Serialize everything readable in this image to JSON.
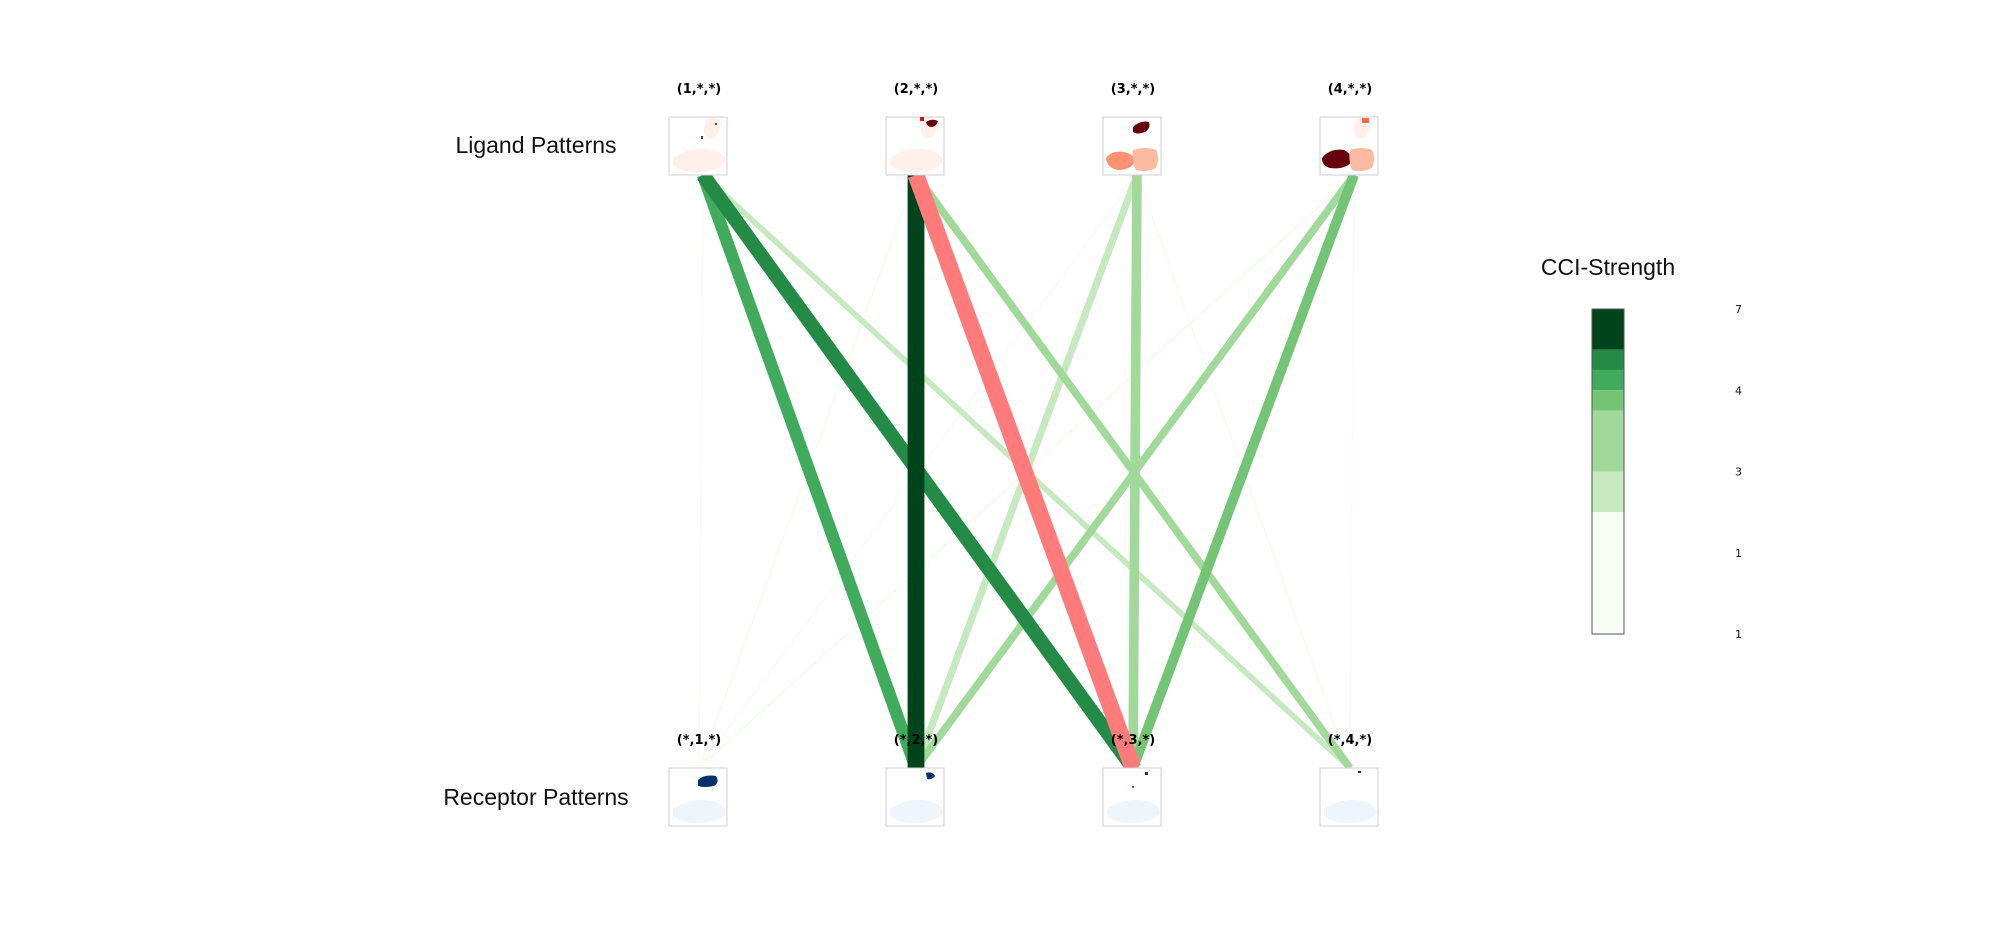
{
  "row_labels": {
    "ligand": "Ligand Patterns",
    "receptor": "Receptor Patterns"
  },
  "ligand_nodes": [
    {
      "label": "(1,*,*)",
      "map": "spot-map-red-1"
    },
    {
      "label": "(2,*,*)",
      "map": "spot-map-red-2"
    },
    {
      "label": "(3,*,*)",
      "map": "spot-map-red-3"
    },
    {
      "label": "(4,*,*)",
      "map": "spot-map-red-4"
    }
  ],
  "receptor_nodes": [
    {
      "label": "(*,1,*)",
      "map": "spot-map-blue-1"
    },
    {
      "label": "(*,2,*)",
      "map": "spot-map-blue-2"
    },
    {
      "label": "(*,3,*)",
      "map": "spot-map-blue-3"
    },
    {
      "label": "(*,4,*)",
      "map": "spot-map-blue-4"
    }
  ],
  "edges": [
    {
      "from": 1,
      "to": 1,
      "strength": 0.6,
      "color": "#f7fcf5"
    },
    {
      "from": 1,
      "to": 2,
      "strength": 5.2,
      "color": "#41ab5d"
    },
    {
      "from": 1,
      "to": 3,
      "strength": 6.0,
      "color": "#238b45"
    },
    {
      "from": 1,
      "to": 4,
      "strength": 2.4,
      "color": "#c7e9c0"
    },
    {
      "from": 2,
      "to": 1,
      "strength": 0.8,
      "color": "#f7fcf5"
    },
    {
      "from": 2,
      "to": 2,
      "strength": 7.0,
      "color": "#00441b"
    },
    {
      "from": 2,
      "to": 3,
      "strength": 7.0,
      "color": "#ff7b7b",
      "highlight": true
    },
    {
      "from": 2,
      "to": 4,
      "strength": 3.2,
      "color": "#a1d99b"
    },
    {
      "from": 3,
      "to": 1,
      "strength": 0.6,
      "color": "#f7fcf5"
    },
    {
      "from": 3,
      "to": 2,
      "strength": 3.0,
      "color": "#c7e9c0"
    },
    {
      "from": 3,
      "to": 3,
      "strength": 4.0,
      "color": "#a1d99b"
    },
    {
      "from": 3,
      "to": 4,
      "strength": 0.8,
      "color": "#f7fcf5"
    },
    {
      "from": 4,
      "to": 1,
      "strength": 1.0,
      "color": "#f7fcf5"
    },
    {
      "from": 4,
      "to": 2,
      "strength": 3.2,
      "color": "#a1d99b"
    },
    {
      "from": 4,
      "to": 3,
      "strength": 4.2,
      "color": "#74c476"
    },
    {
      "from": 4,
      "to": 4,
      "strength": 0.4,
      "color": "#f7fcf5"
    }
  ],
  "legend": {
    "title": "CCI-Strength",
    "ticks": [
      "7",
      "4",
      "3",
      "1",
      "1"
    ],
    "bands": [
      {
        "color": "#00441b",
        "share": 0.125
      },
      {
        "color": "#238b45",
        "share": 0.0625
      },
      {
        "color": "#41ab5d",
        "share": 0.0625
      },
      {
        "color": "#74c476",
        "share": 0.0625
      },
      {
        "color": "#a1d99b",
        "share": 0.1875
      },
      {
        "color": "#c7e9c0",
        "share": 0.125
      },
      {
        "color": "#f7fcf5",
        "share": 0.375
      }
    ]
  },
  "colors": {
    "ligand_scale": [
      "#fff5f0",
      "#fcbba1",
      "#fb6a4a",
      "#cb181d",
      "#67000d"
    ],
    "receptor_scale": [
      "#f7fbff",
      "#c6dbef",
      "#6baed6",
      "#2171b5",
      "#08306b"
    ]
  }
}
